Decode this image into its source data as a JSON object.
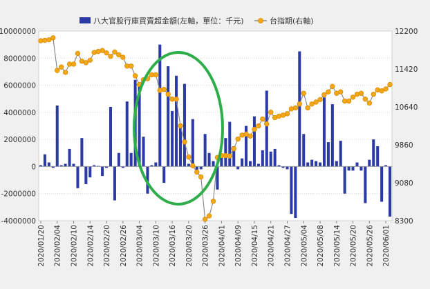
{
  "chart_data": {
    "type": "bar",
    "title": "",
    "legend": {
      "placement": "top"
    },
    "grid": true,
    "y_left": {
      "range": [
        -4000000,
        10000000
      ],
      "ticks": [
        "10000000",
        "8000000",
        "6000000",
        "4000000",
        "2000000",
        "0",
        "-2000000",
        "-4000000"
      ],
      "tick_values": [
        10000000,
        8000000,
        6000000,
        4000000,
        2000000,
        0,
        -2000000,
        -4000000
      ]
    },
    "y_right": {
      "range": [
        8300,
        12200
      ],
      "ticks": [
        "12200",
        "11420",
        "10640",
        "9860",
        "9080",
        "8300"
      ],
      "tick_values": [
        12200,
        11420,
        10640,
        9860,
        9080,
        8300
      ]
    },
    "x_tick_labels": [
      "2020/01/20",
      "2020/02/04",
      "2020/02/10",
      "2020/02/14",
      "2020/02/20",
      "2020/02/26",
      "2020/03/04",
      "2020/03/10",
      "2020/03/16",
      "2020/03/20",
      "2020/03/26",
      "2020/04/01",
      "2020/04/09",
      "2020/04/15",
      "2020/04/21",
      "2020/04/27",
      "2020/05/04",
      "2020/05/08",
      "2020/05/14",
      "2020/05/20",
      "2020/05/26",
      "2020/06/01"
    ],
    "x_tick_indices": [
      0,
      4,
      8,
      12,
      16,
      20,
      24,
      28,
      32,
      36,
      40,
      44,
      48,
      52,
      56,
      60,
      64,
      68,
      72,
      76,
      80,
      84
    ],
    "series": [
      {
        "name": "八大官股行庫買賣超金額(左軸，單位：千元)",
        "axis": "left",
        "type": "bar",
        "color": "#2b3aa5",
        "values": [
          100000,
          900000,
          300000,
          -100000,
          4500000,
          100000,
          200000,
          1300000,
          200000,
          -1600000,
          2100000,
          -1300000,
          -800000,
          100000,
          50000,
          -700000,
          -100000,
          4400000,
          -2500000,
          1000000,
          -100000,
          4800000,
          1000000,
          6400000,
          6000000,
          2200000,
          -2000000,
          100000,
          300000,
          9000000,
          -1200000,
          7400000,
          4100000,
          6700000,
          3000000,
          6100000,
          200000,
          3500000,
          -300000,
          -200000,
          2400000,
          1000000,
          400000,
          -1700000,
          900000,
          2100000,
          3300000,
          1500000,
          -200000,
          600000,
          3000000,
          400000,
          3700000,
          200000,
          1200000,
          5600000,
          1100000,
          1300000,
          100000,
          -100000,
          -200000,
          -3500000,
          -3800000,
          8500000,
          2400000,
          300000,
          500000,
          400000,
          300000,
          5100000,
          1800000,
          4600000,
          400000,
          1900000,
          -2000000,
          -300000,
          -300000,
          300000,
          -300000,
          -2700000,
          500000,
          2000000,
          1500000,
          -2600000,
          100000,
          -3700000
        ]
      },
      {
        "name": "台指期(右軸)",
        "axis": "right",
        "type": "line",
        "color": "#f5a817",
        "values": [
          12000,
          12010,
          12020,
          12060,
          11390,
          11460,
          11350,
          11520,
          11520,
          11740,
          11580,
          11550,
          11600,
          11760,
          11780,
          11800,
          11750,
          11680,
          11770,
          11710,
          11660,
          11480,
          11480,
          11280,
          11100,
          11200,
          11220,
          11300,
          11300,
          10980,
          11000,
          10900,
          10800,
          10800,
          10250,
          9920,
          9610,
          9430,
          9300,
          9200,
          8330,
          8400,
          8700,
          9600,
          9640,
          9640,
          9630,
          9780,
          9980,
          10060,
          10080,
          10040,
          10180,
          10250,
          10390,
          10290,
          10530,
          10420,
          10450,
          10470,
          10500,
          10600,
          10620,
          10700,
          10920,
          10620,
          10700,
          10740,
          10790,
          10890,
          10950,
          11060,
          10920,
          10950,
          10760,
          10760,
          10840,
          10900,
          10920,
          10800,
          10720,
          10900,
          10990,
          10970,
          11010,
          11100
        ]
      }
    ]
  }
}
